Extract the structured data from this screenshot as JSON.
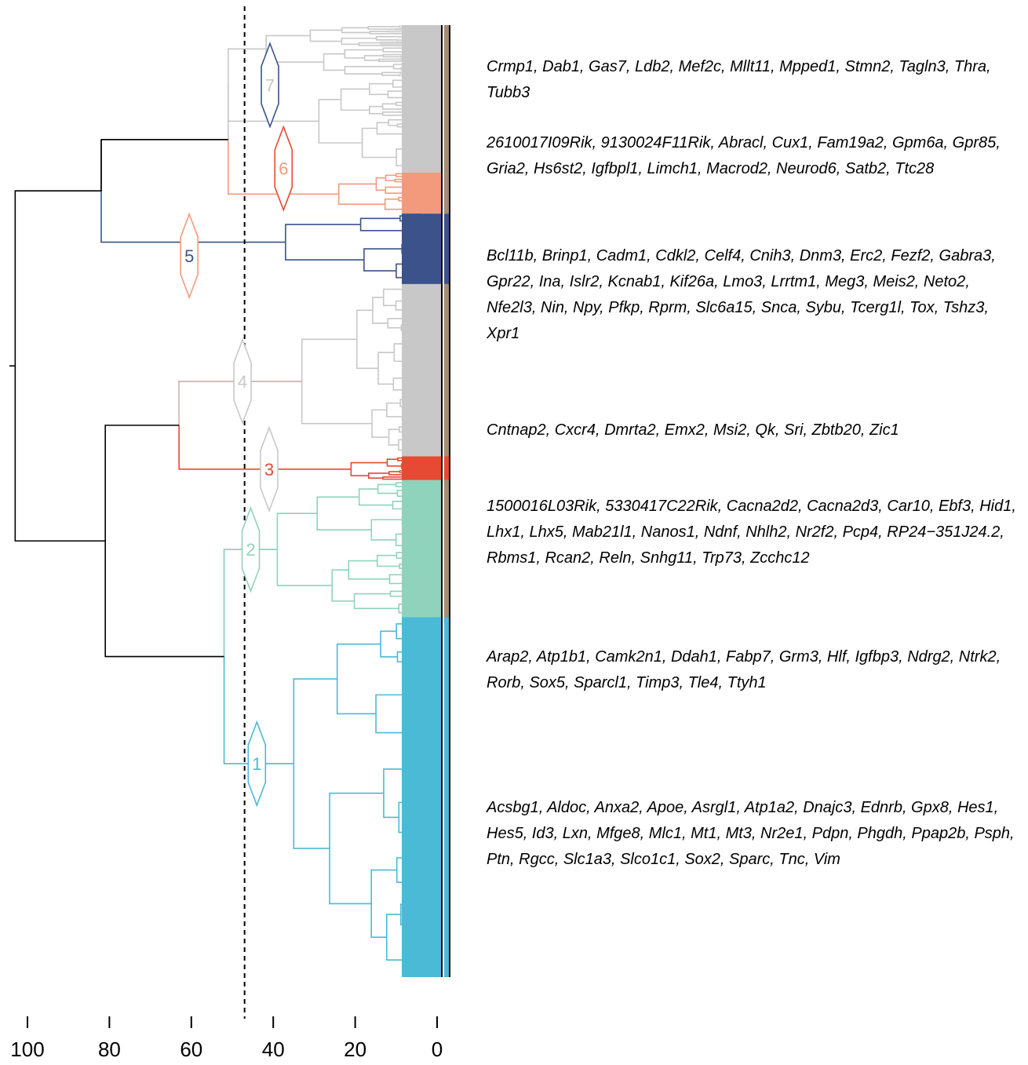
{
  "chart_data": {
    "type": "dendrogram",
    "x_axis": {
      "ticks": [
        "100",
        "80",
        "60",
        "40",
        "20",
        "0"
      ],
      "range": [
        100,
        0
      ],
      "cut_height": 47
    },
    "colors": {
      "root": "#000000",
      "cluster_1": "#4bbad6",
      "cluster_2": "#8fd3bd",
      "cluster_3": "#e64a32",
      "cluster_4": "#c8c8c8",
      "cluster_5": "#3b538a",
      "cluster_6": "#f39a7d",
      "cluster_7": "#c8c8c8",
      "outer_strip": "#a58b70"
    },
    "clusters": [
      {
        "id": "7",
        "label": "7",
        "merge_height": 51,
        "color": "#c8c8c8",
        "badge_color": "#3b538a",
        "leaf_share": 0.155
      },
      {
        "id": "6",
        "label": "6",
        "merge_height": 24,
        "color": "#f39a7d",
        "badge_color": "#e64a32",
        "leaf_share": 0.043
      },
      {
        "id": "5",
        "label": "5",
        "merge_height": 37,
        "color": "#3b538a",
        "badge_color": "#f39a7d",
        "leaf_share": 0.074
      },
      {
        "id": "4",
        "label": "4",
        "merge_height": 33,
        "color": "#c8c8c8",
        "badge_color": "#c8c8c8",
        "leaf_share": 0.181
      },
      {
        "id": "3",
        "label": "3",
        "merge_height": 21,
        "color": "#e64a32",
        "badge_color": "#c8c8c8",
        "leaf_share": 0.025
      },
      {
        "id": "2",
        "label": "2",
        "merge_height": 39,
        "color": "#8fd3bd",
        "badge_color": "#8fd3bd",
        "leaf_share": 0.144
      },
      {
        "id": "1",
        "label": "1",
        "merge_height": 35,
        "color": "#4bbad6",
        "badge_color": "#4bbad6",
        "leaf_share": 0.378
      }
    ],
    "merges": [
      {
        "join": [
          "7",
          "6"
        ],
        "height": 51
      },
      {
        "join": [
          "7+6",
          "5"
        ],
        "height": 82
      },
      {
        "join": [
          "4",
          "3"
        ],
        "height": 63
      },
      {
        "join": [
          "2",
          "1"
        ],
        "height": 52
      },
      {
        "join": [
          "4+3",
          "2+1"
        ],
        "height": 81
      },
      {
        "join": [
          "top",
          "bottom"
        ],
        "height": 103
      }
    ],
    "gene_lists": [
      {
        "cluster": "7",
        "color": "#c8c8c8",
        "text": "Crmp1, Dab1, Gas7, Ldb2, Mef2c, Mllt11, Mpped1, Stmn2, Tagln3, Thra, Tubb3"
      },
      {
        "cluster": "6",
        "color": "#f39a7d",
        "text": "2610017I09Rik, 9130024F11Rik, Abracl, Cux1, Fam19a2, Gpm6a, Gpr85, Gria2, Hs6st2, Igfbpl1, Limch1, Macrod2, Neurod6, Satb2, Ttc28"
      },
      {
        "cluster": "5",
        "color": "#3b538a",
        "text": "Bcl11b, Brinp1, Cadm1, Cdkl2, Celf4, Cnih3, Dnm3, Erc2, Fezf2, Gabra3, Gpr22, Ina, Islr2, Kcnab1, Kif26a, Lmo3, Lrrtm1, Meg3, Meis2, Neto2, Nfe2l3, Nin, Npy, Pfkp, Rprm, Slc6a15, Snca, Sybu, Tcerg1l, Tox, Tshz3, Xpr1"
      },
      {
        "cluster": "4",
        "color": "#c8c8c8",
        "text": "Cntnap2, Cxcr4, Dmrta2, Emx2, Msi2, Qk, Sri, Zbtb20, Zic1"
      },
      {
        "cluster": "3",
        "color": "#e64a32",
        "text": "1500016L03Rik, 5330417C22Rik, Cacna2d2, Cacna2d3, Car10, Ebf3, Hid1, Lhx1, Lhx5, Mab21l1, Nanos1, Ndnf, Nhlh2, Nr2f2, Pcp4, RP24−351J24.2, Rbms1, Rcan2, Reln, Snhg11, Trp73, Zcchc12"
      },
      {
        "cluster": "2",
        "color": "#8fd3bd",
        "text": "Arap2, Atp1b1, Camk2n1, Ddah1, Fabp7, Grm3, Hlf, Igfbp3, Ndrg2, Ntrk2, Rorb, Sox5, Sparcl1, Timp3, Tle4, Ttyh1"
      },
      {
        "cluster": "1",
        "color": "#4bbad6",
        "text": "Acsbg1, Aldoc, Anxa2, Apoe, Asrgl1, Atp1a2, Dnajc3, Ednrb, Gpx8, Hes1, Hes5, Id3, Lxn, Mfge8, Mlc1, Mt1, Mt3, Nr2e1, Pdpn, Phgdh, Ppap2b, Psph, Ptn, Rgcc, Slc1a3, Slco1c1, Sox2, Sparc, Tnc, Vim"
      }
    ]
  }
}
